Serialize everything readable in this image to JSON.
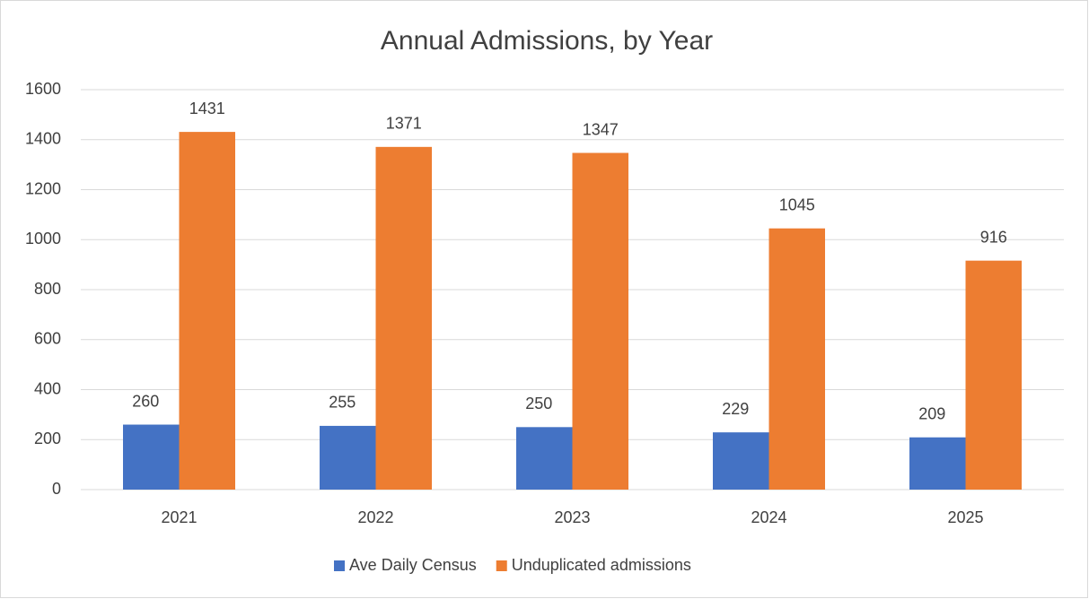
{
  "chart_data": {
    "type": "bar",
    "title": "Annual Admissions, by Year",
    "categories": [
      "2021",
      "2022",
      "2023",
      "2024",
      "2025"
    ],
    "series": [
      {
        "name": "Ave Daily Census",
        "color": "#4472c4",
        "values": [
          260,
          255,
          250,
          229,
          209
        ]
      },
      {
        "name": "Unduplicated admissions",
        "color": "#ed7d31",
        "values": [
          1431,
          1371,
          1347,
          1045,
          916
        ]
      }
    ],
    "ylim": [
      0,
      1600
    ],
    "yticks": [
      0,
      200,
      400,
      600,
      800,
      1000,
      1200,
      1400,
      1600
    ],
    "grid": true,
    "legend": "bottom",
    "data_labels": true
  }
}
